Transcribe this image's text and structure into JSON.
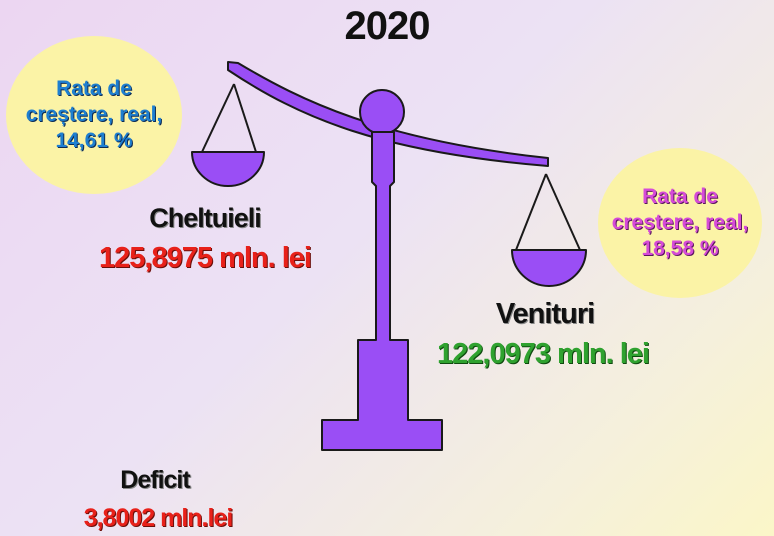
{
  "title": "2020",
  "rate_left": {
    "line1": "Rata de",
    "line2": "creștere, real,",
    "line3": "14,61 %"
  },
  "rate_right": {
    "line1": "Rata de",
    "line2": "creștere, real,",
    "line3": "18,58 %"
  },
  "cheltuieli": {
    "label": "Cheltuieli",
    "value": "125,8975 mln. lei"
  },
  "venituri": {
    "label": "Venituri",
    "value": "122,0973 mln. lei"
  },
  "deficit": {
    "label": "Deficit",
    "value": "3,8002 mln.lei"
  },
  "colors": {
    "scale": "#9a4ef5",
    "scale_outline": "#1a1a1a",
    "bubble": "#fbf3a6",
    "expense_red": "#e8211a",
    "revenue_green": "#2fa22f",
    "left_rate_blue": "#1e7fd0",
    "right_rate_magenta": "#d64bd8"
  }
}
